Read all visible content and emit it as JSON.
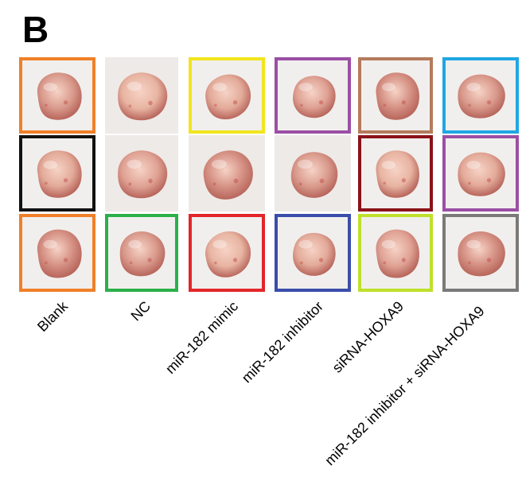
{
  "panel_label": "B",
  "groups": [
    {
      "label": "Blank"
    },
    {
      "label": "NC"
    },
    {
      "label": "miR-182 mimic"
    },
    {
      "label": "miR-182 inhibitor"
    },
    {
      "label": "siRNA-HOXA9"
    },
    {
      "label": "miR-182 inhibitor + siRNA-HOXA9"
    }
  ],
  "frame_colors": {
    "orange": "#f08028",
    "black": "#111111",
    "green": "#2bb04a",
    "yellow": "#f2e51d",
    "red": "#e2262b",
    "purple": "#9b4fa4",
    "blue": "#3a4dab",
    "brown": "#b57b5c",
    "darkred": "#8b1219",
    "lime": "#bfe02a",
    "skyblue": "#1ea7e3",
    "gray": "#7a7a7a"
  },
  "tumors": [
    {
      "name": "tumor-blank-1",
      "frame": "orange"
    },
    {
      "name": "tumor-blank-2",
      "frame": "black"
    },
    {
      "name": "tumor-blank-3",
      "frame": "orange"
    },
    {
      "name": "tumor-nc-1",
      "frame": "none"
    },
    {
      "name": "tumor-nc-2",
      "frame": "none"
    },
    {
      "name": "tumor-nc-3",
      "frame": "green"
    },
    {
      "name": "tumor-mimic-1",
      "frame": "yellow"
    },
    {
      "name": "tumor-mimic-2",
      "frame": "none"
    },
    {
      "name": "tumor-mimic-3",
      "frame": "red"
    },
    {
      "name": "tumor-inhibitor-1",
      "frame": "purple"
    },
    {
      "name": "tumor-inhibitor-2",
      "frame": "none"
    },
    {
      "name": "tumor-inhibitor-3",
      "frame": "blue"
    },
    {
      "name": "tumor-sirna-1",
      "frame": "brown"
    },
    {
      "name": "tumor-sirna-2",
      "frame": "darkred"
    },
    {
      "name": "tumor-sirna-3",
      "frame": "lime"
    },
    {
      "name": "tumor-combo-1",
      "frame": "skyblue"
    },
    {
      "name": "tumor-combo-2",
      "frame": "purple"
    },
    {
      "name": "tumor-combo-3",
      "frame": "gray"
    }
  ]
}
